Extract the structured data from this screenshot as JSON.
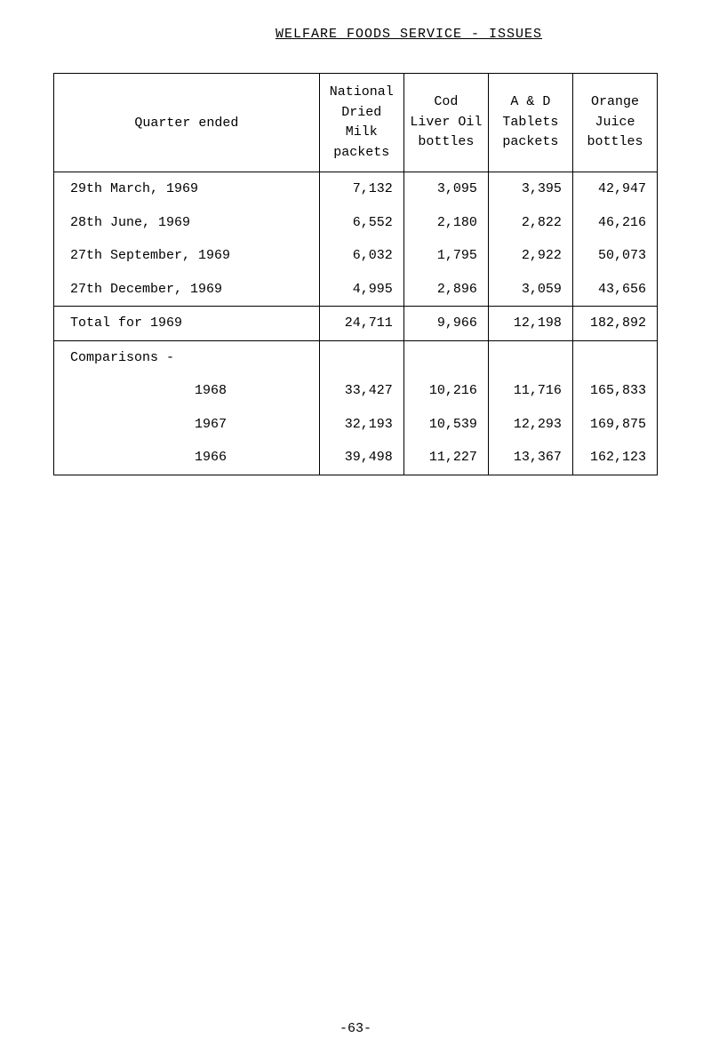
{
  "title": "WELFARE FOODS SERVICE - ISSUES",
  "headers": {
    "col1": "Quarter ended",
    "col2": "National\nDried Milk\npackets",
    "col3": "Cod\nLiver Oil\nbottles",
    "col4": "A & D\nTablets\npackets",
    "col5": "Orange\nJuice\nbottles"
  },
  "quarters": [
    {
      "label": "29th March, 1969",
      "c2": "7,132",
      "c3": "3,095",
      "c4": "3,395",
      "c5": "42,947"
    },
    {
      "label": "28th June, 1969",
      "c2": "6,552",
      "c3": "2,180",
      "c4": "2,822",
      "c5": "46,216"
    },
    {
      "label": "27th September, 1969",
      "c2": "6,032",
      "c3": "1,795",
      "c4": "2,922",
      "c5": "50,073"
    },
    {
      "label": "27th December, 1969",
      "c2": "4,995",
      "c3": "2,896",
      "c4": "3,059",
      "c5": "43,656"
    }
  ],
  "total": {
    "label": "Total for 1969",
    "c2": "24,711",
    "c3": "9,966",
    "c4": "12,198",
    "c5": "182,892"
  },
  "comparisons_label": "Comparisons -",
  "comparisons": [
    {
      "label": "1968",
      "c2": "33,427",
      "c3": "10,216",
      "c4": "11,716",
      "c5": "165,833"
    },
    {
      "label": "1967",
      "c2": "32,193",
      "c3": "10,539",
      "c4": "12,293",
      "c5": "169,875"
    },
    {
      "label": "1966",
      "c2": "39,498",
      "c3": "11,227",
      "c4": "13,367",
      "c5": "162,123"
    }
  ],
  "page": "-63-",
  "col_widths": {
    "c1": "44%",
    "c2": "14%",
    "c3": "14%",
    "c4": "14%",
    "c5": "14%"
  }
}
